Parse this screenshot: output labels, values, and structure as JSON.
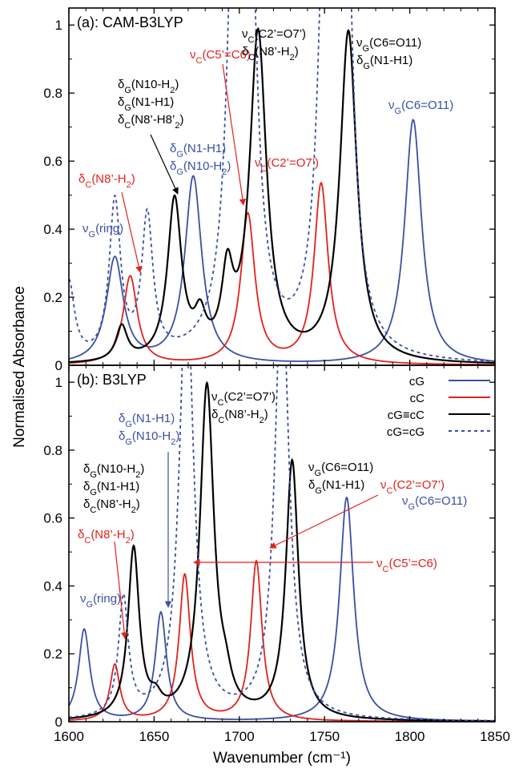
{
  "figure": {
    "y_label": "Normalised Absorbance",
    "x_label": "Wavenumber (cm⁻¹)"
  },
  "chart_data": [
    {
      "type": "line",
      "title": "(a): CAM-B3LYP",
      "xlim": [
        1600,
        1850
      ],
      "ylim": [
        0,
        1.05
      ],
      "x_ticks": [
        "1600",
        "1650",
        "1700",
        "1750",
        "1800",
        "1850"
      ],
      "y_ticks": [
        "0",
        "0.2",
        "0.4",
        "0.6",
        "0.8",
        "1"
      ],
      "grid": false,
      "series": [
        {
          "key": "cG",
          "color": "#3a4fa3",
          "dash": false,
          "peaks": [
            [
              1627,
              0.31,
              6
            ],
            [
              1673,
              0.55,
              6
            ],
            [
              1802,
              0.72,
              6
            ]
          ]
        },
        {
          "key": "cC",
          "color": "#e0221c",
          "dash": false,
          "peaks": [
            [
              1636,
              0.26,
              5
            ],
            [
              1705,
              0.44,
              5
            ],
            [
              1748,
              0.53,
              5
            ]
          ]
        },
        {
          "key": "cG≡cC",
          "color": "#000000",
          "dash": false,
          "peaks": [
            [
              1631,
              0.1,
              4
            ],
            [
              1662,
              0.47,
              5
            ],
            [
              1677,
              0.1,
              4
            ],
            [
              1693,
              0.22,
              4
            ],
            [
              1711,
              0.96,
              6
            ],
            [
              1764,
              0.97,
              6
            ]
          ]
        },
        {
          "key": "cG=cG",
          "color": "#3a4fa3",
          "dash": true,
          "peaks": [
            [
              1600,
              0.23,
              4
            ],
            [
              1627,
              0.46,
              4
            ],
            [
              1646,
              0.41,
              4
            ],
            [
              1698,
              1.4,
              5
            ],
            [
              1705,
              1.4,
              5
            ],
            [
              1751,
              1.4,
              5
            ],
            [
              1762,
              1.4,
              5
            ]
          ]
        }
      ],
      "annotations": [
        {
          "series": "cG",
          "lines": [
            [
              "ν",
              "G",
              "(ring)"
            ]
          ]
        },
        {
          "series": "cC",
          "lines": [
            [
              "δ",
              "C",
              "(N8’-H",
              "2",
              ")"
            ]
          ]
        },
        {
          "series": "cG≡cC",
          "lines": [
            [
              "δ",
              "G",
              "(N10-H",
              "2",
              ")"
            ],
            [
              "δ",
              "G",
              "(N1-H1)"
            ],
            [
              "δ",
              "C",
              "(N8’-H8’",
              "2",
              ")"
            ]
          ]
        },
        {
          "series": "cG",
          "lines": [
            [
              "δ",
              "G",
              "(N1-H1)"
            ],
            [
              "δ",
              "G",
              "(N10-H",
              "2",
              ")"
            ]
          ]
        },
        {
          "series": "cC",
          "lines": [
            [
              "ν",
              "C",
              "(C5’=C6)"
            ]
          ]
        },
        {
          "series": "cG≡cC",
          "lines": [
            [
              "ν",
              "C",
              "(C2’=O7’)"
            ],
            [
              "δ",
              "C",
              "(N8’-H",
              "2",
              ")"
            ]
          ]
        },
        {
          "series": "cC",
          "lines": [
            [
              "ν",
              "C",
              "(C2’=O7’)"
            ]
          ]
        },
        {
          "series": "cG≡cC",
          "lines": [
            [
              "ν",
              "G",
              "(C6=O11)"
            ],
            [
              "δ",
              "G",
              "(N1-H1)"
            ]
          ]
        },
        {
          "series": "cG",
          "lines": [
            [
              "ν",
              "G",
              "(C6=O11)"
            ]
          ]
        }
      ]
    },
    {
      "type": "line",
      "title": "(b): B3LYP",
      "xlim": [
        1600,
        1850
      ],
      "ylim": [
        0,
        1.05
      ],
      "x_ticks": [
        "1600",
        "1650",
        "1700",
        "1750",
        "1800",
        "1850"
      ],
      "y_ticks": [
        "0",
        "0.2",
        "0.4",
        "0.6",
        "0.8",
        "1"
      ],
      "grid": false,
      "legend": {
        "position": "top-right",
        "entries": [
          "cG",
          "cC",
          "cG≡cC",
          "cG=cG"
        ]
      },
      "series": [
        {
          "key": "cG",
          "color": "#3a4fa3",
          "dash": false,
          "peaks": [
            [
              1609,
              0.27,
              4
            ],
            [
              1654,
              0.32,
              4
            ],
            [
              1763,
              0.66,
              5
            ]
          ]
        },
        {
          "key": "cC",
          "color": "#e0221c",
          "dash": false,
          "peaks": [
            [
              1627,
              0.165,
              3.5
            ],
            [
              1668,
              0.43,
              4
            ],
            [
              1710,
              0.47,
              4
            ]
          ]
        },
        {
          "key": "cG≡cC",
          "color": "#000000",
          "dash": false,
          "peaks": [
            [
              1638,
              0.5,
              4
            ],
            [
              1651,
              0.04,
              4
            ],
            [
              1681,
              0.98,
              5
            ],
            [
              1692,
              0.06,
              4
            ],
            [
              1731,
              0.76,
              4.5
            ]
          ]
        },
        {
          "key": "cG=cG",
          "color": "#3a4fa3",
          "dash": true,
          "peaks": [
            [
              1632,
              0.35,
              3.5
            ],
            [
              1669,
              1.3,
              5
            ],
            [
              1725,
              1.3,
              5
            ]
          ]
        }
      ],
      "annotations": [
        {
          "series": "cG≡cC",
          "lines": [
            [
              "δ",
              "G",
              "(N10-H",
              "2",
              ")"
            ],
            [
              "δ",
              "G",
              "(N1-H1)"
            ],
            [
              "δ",
              "C",
              "(N8’-H",
              "2",
              ")"
            ]
          ]
        },
        {
          "series": "cG",
          "lines": [
            [
              "δ",
              "G",
              "(N1-H1)"
            ],
            [
              "δ",
              "G",
              "(N10-H",
              "2",
              ")"
            ]
          ]
        },
        {
          "series": "cG≡cC",
          "lines": [
            [
              "ν",
              "C",
              "(C2’=O7’)"
            ],
            [
              "δ",
              "C",
              "(N8’-H",
              "2",
              ")"
            ]
          ]
        },
        {
          "series": "cG≡cC",
          "lines": [
            [
              "ν",
              "G",
              "(C6=O11)"
            ],
            [
              "δ",
              "G",
              "(N1-H1)"
            ]
          ]
        },
        {
          "series": "cC",
          "lines": [
            [
              "δ",
              "C",
              "(N8’-H",
              "2",
              ")"
            ]
          ]
        },
        {
          "series": "cG",
          "lines": [
            [
              "ν",
              "G",
              "(C6=O11)"
            ]
          ]
        },
        {
          "series": "cG",
          "lines": [
            [
              "ν",
              "G",
              "(ring)"
            ]
          ]
        },
        {
          "series": "cC",
          "lines": [
            [
              "ν",
              "C",
              "(C2’=O7’)"
            ]
          ]
        },
        {
          "series": "cC",
          "lines": [
            [
              "ν",
              "C",
              "(C5’=C6)"
            ]
          ]
        }
      ]
    }
  ]
}
